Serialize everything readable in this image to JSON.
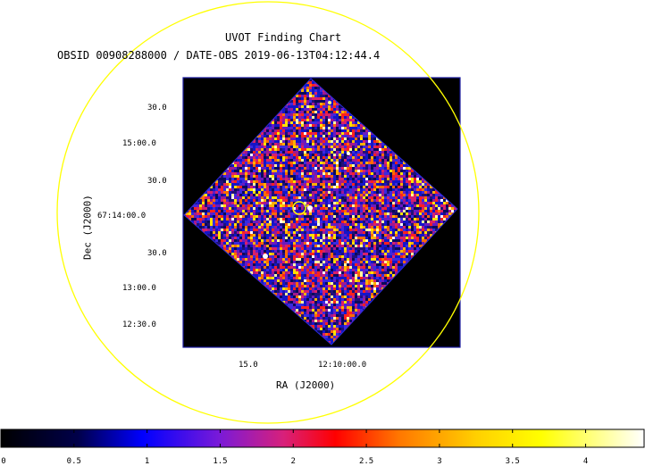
{
  "title": "UVOT Finding Chart",
  "subtitle": "OBSID 00908288000 / DATE-OBS 2019-06-13T04:12:44.4",
  "xlabel": "RA (J2000)",
  "ylabel": "Dec (J2000)",
  "ra_ticks": [
    "15.0",
    "12:10:00.0"
  ],
  "dec_ticks": [
    "30.0",
    "15:00.0",
    "30.0",
    "67:14:00.0",
    "30.0",
    "13:00.0",
    "12:30.0"
  ],
  "colorbar": {
    "min": 0,
    "max": 4.4,
    "tick_labels": [
      "0",
      "0.5",
      "1",
      "1.5",
      "2",
      "2.5",
      "3",
      "3.5",
      "4"
    ]
  },
  "colors": {
    "circle": "#ffff00",
    "frame": "#1a1aa0",
    "background": "#000000"
  }
}
